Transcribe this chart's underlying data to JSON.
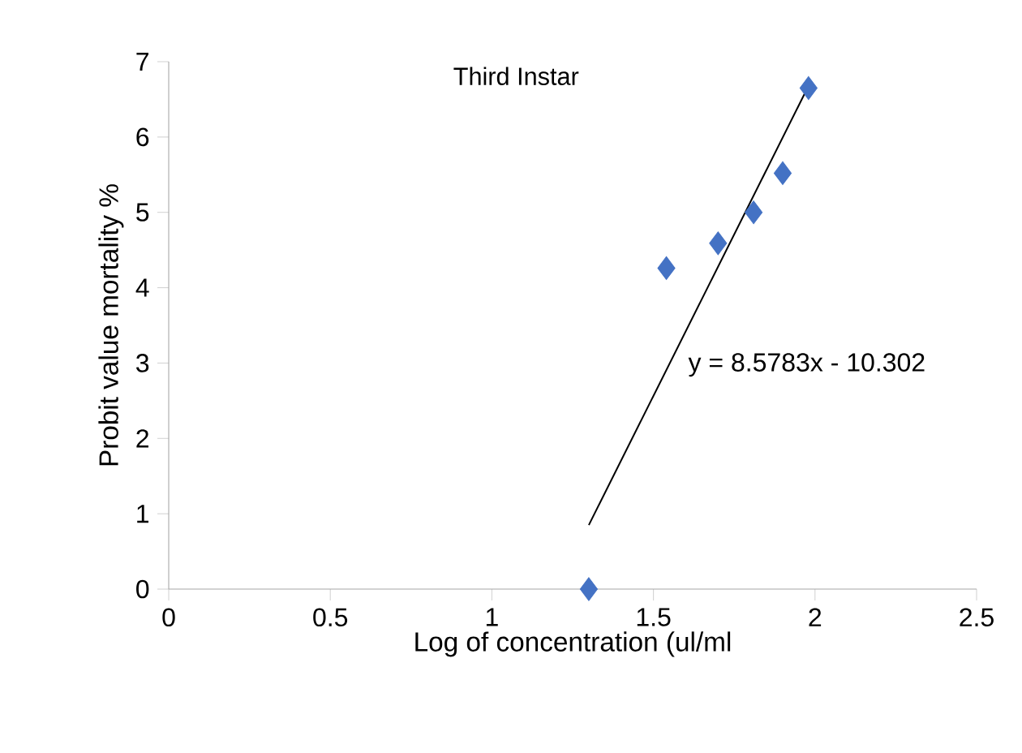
{
  "chart_data": {
    "type": "scatter",
    "title": "Third Instar",
    "xlabel": "Log of concentration (ul/ml",
    "ylabel": "Probit value mortality %",
    "series": [
      {
        "color": "#4472c4",
        "marker": "diamond",
        "x": [
          1.3,
          1.54,
          1.7,
          1.81,
          1.9,
          1.98
        ],
        "values": [
          0,
          4.26,
          4.59,
          5.0,
          5.52,
          6.65
        ]
      },
      {
        "type": "line",
        "color": "#000000",
        "marker": "none",
        "line_style": "solid",
        "x": [
          1.3,
          1.98
        ],
        "values": [
          0.85,
          6.68
        ]
      }
    ],
    "annotations": [
      "y = 8.5783x - 10.302"
    ],
    "xlim": [
      0,
      2.5
    ],
    "xticks": [
      0,
      0.5,
      1,
      1.5,
      2,
      2.5
    ],
    "ylim": [
      0,
      7
    ],
    "yticks": [
      0,
      1,
      2,
      3,
      4,
      5,
      6,
      7
    ],
    "grid": false
  }
}
